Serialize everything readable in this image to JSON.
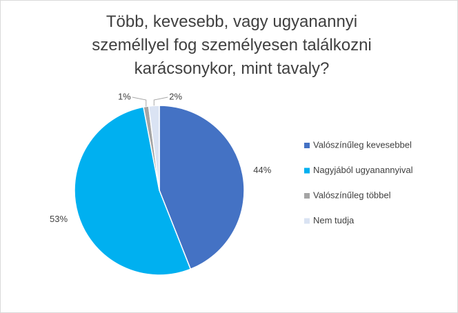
{
  "chart_data": {
    "type": "pie",
    "title": "Több, kevesebb, vagy ugyanannyi személlyel fog személyesen találkozni karácsonykor, mint tavaly?",
    "categories": [
      "Valószínűleg kevesebbel",
      "Nagyjából ugyanannyival",
      "Valószínűleg többel",
      "Nem tudja"
    ],
    "values": [
      44,
      53,
      1,
      2
    ],
    "value_labels": [
      "44%",
      "53%",
      "1%",
      "2%"
    ],
    "colors": [
      "#4472c4",
      "#00b0f0",
      "#a5a5a5",
      "#dae3f3"
    ],
    "legend": "right"
  }
}
